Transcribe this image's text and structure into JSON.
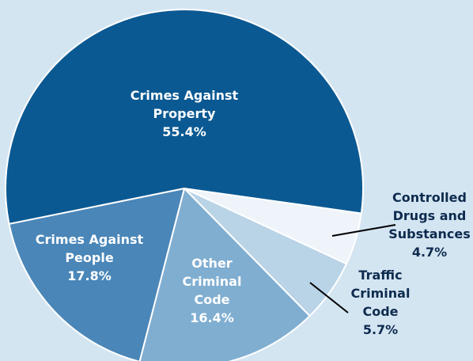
{
  "chart_data": {
    "type": "pie",
    "categories": [
      "Drugs",
      "Traffic",
      "Other",
      "People",
      "Property"
    ],
    "labels": [
      "Controlled\nDrugs and\nSubstances",
      "Traffic\nCriminal\nCode",
      "Other\nCriminal\nCode",
      "Crimes Against\nPeople",
      "Crimes Against\nProperty"
    ],
    "values": [
      4.7,
      5.7,
      16.4,
      17.8,
      55.4
    ],
    "value_labels": [
      "4.7%",
      "5.7%",
      "16.4%",
      "17.8%",
      "55.4%"
    ],
    "colors": [
      "#eef4fa",
      "#b9d3e7",
      "#80aed1",
      "#4a86b8",
      "#0b5992"
    ]
  }
}
